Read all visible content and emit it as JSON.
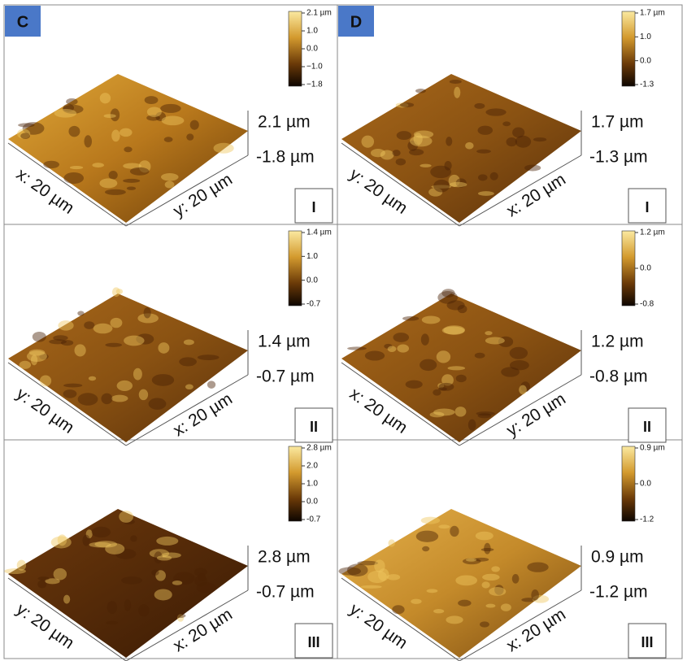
{
  "column_labels": [
    "C",
    "D"
  ],
  "panels": [
    {
      "colorbar": [
        "2.1 µm",
        "1.0",
        "0.0",
        "−1.0",
        "−1.8"
      ],
      "z_max": "2.1 µm",
      "z_min": "-1.8 µm",
      "axis_left": "x: 20 µm",
      "axis_right": "y: 20 µm",
      "label": "I"
    },
    {
      "colorbar": [
        "1.7 µm",
        "1.0",
        "0.0",
        "-1.3"
      ],
      "z_max": "1.7 µm",
      "z_min": "-1.3 µm",
      "axis_left": "y: 20 µm",
      "axis_right": "x: 20 µm",
      "label": "I"
    },
    {
      "colorbar": [
        "1.4 µm",
        "1.0",
        "0.0",
        "-0.7"
      ],
      "z_max": "1.4 µm",
      "z_min": "-0.7 µm",
      "axis_left": "y: 20 µm",
      "axis_right": "x: 20 µm",
      "label": "II"
    },
    {
      "colorbar": [
        "1.2 µm",
        "0.0",
        "-0.8"
      ],
      "z_max": "1.2 µm",
      "z_min": "-0.8 µm",
      "axis_left": "x: 20 µm",
      "axis_right": "y: 20 µm",
      "label": "II"
    },
    {
      "colorbar": [
        "2.8 µm",
        "2.0",
        "1.0",
        "0.0",
        "-0.7"
      ],
      "z_max": "2.8 µm",
      "z_min": "-0.7 µm",
      "axis_left": "y: 20 µm",
      "axis_right": "x: 20 µm",
      "label": "III"
    },
    {
      "colorbar": [
        "0.9 µm",
        "0.0",
        "-1.2"
      ],
      "z_max": "0.9 µm",
      "z_min": "-1.2 µm",
      "axis_left": "y: 20 µm",
      "axis_right": "x: 20 µm",
      "label": "III"
    }
  ]
}
